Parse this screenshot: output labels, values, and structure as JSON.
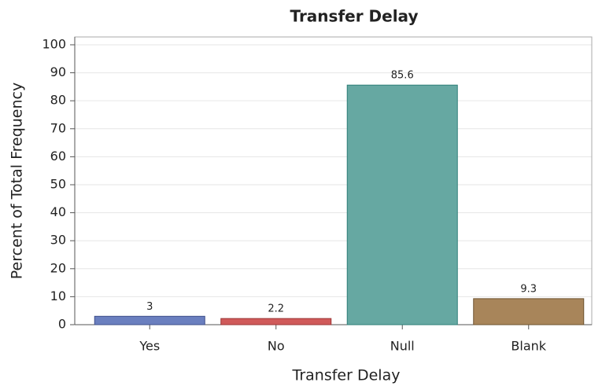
{
  "chart_data": {
    "type": "bar",
    "title": "Transfer Delay",
    "xlabel": "Transfer Delay",
    "ylabel": "Percent of Total Frequency",
    "categories": [
      "Yes",
      "No",
      "Null",
      "Blank"
    ],
    "values": [
      3,
      2.2,
      85.6,
      9.3
    ],
    "colors": [
      "#6a7fbf",
      "#d05a5a",
      "#66a8a2",
      "#a8855a"
    ],
    "edge_colors": [
      "#3f4f8a",
      "#9a3535",
      "#2f7f78",
      "#6e5430"
    ],
    "ylim": [
      0,
      102.8
    ],
    "yticks": [
      0,
      10,
      20,
      30,
      40,
      50,
      60,
      70,
      80,
      90,
      100
    ],
    "grid": true
  }
}
